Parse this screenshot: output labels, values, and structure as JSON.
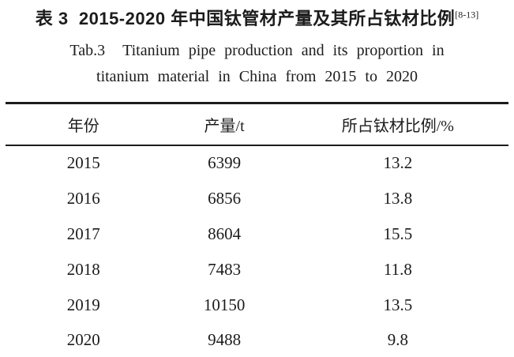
{
  "page": {
    "background": "#ffffff",
    "text_color": "#1c1c1c",
    "rule_color": "#1c1c1c"
  },
  "title": {
    "zh": "表 3  2015-2020 年中国钛管材产量及其所占钛材比例",
    "citation": "[8-13]",
    "en_line1": "Tab.3  Titanium pipe production and its proportion in",
    "en_line2": "titanium material in China from 2015 to 2020"
  },
  "table": {
    "headers": [
      "年份",
      "产量/t",
      "所占钛材比例/%"
    ],
    "rows": [
      [
        "2015",
        "6399",
        "13.2"
      ],
      [
        "2016",
        "6856",
        "13.8"
      ],
      [
        "2017",
        "8604",
        "15.5"
      ],
      [
        "2018",
        "7483",
        "11.8"
      ],
      [
        "2019",
        "10150",
        "13.5"
      ],
      [
        "2020",
        "9488",
        "9.8"
      ]
    ]
  }
}
